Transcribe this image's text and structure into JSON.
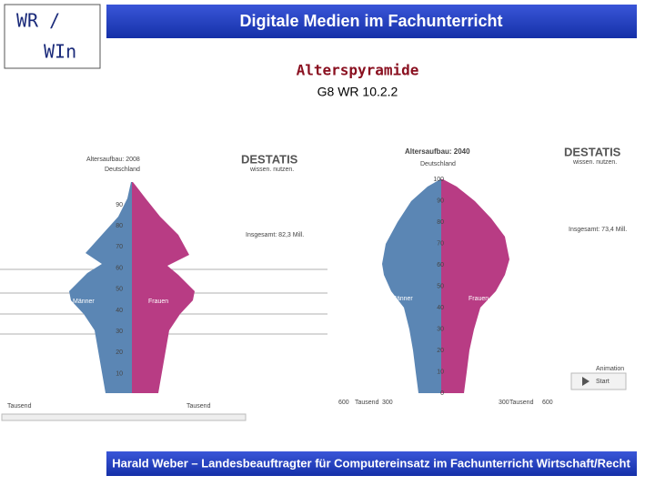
{
  "header": {
    "logo_line1": "WR /",
    "logo_line2": "WIn",
    "title": "Digitale Medien im Fachunterricht"
  },
  "subtitle": "Alterspyramide",
  "course": "G8 WR 10.2.2",
  "left_panel": {
    "title": "Altersaufbau: 2008",
    "region": "Deutschland",
    "brand": "DESTATIS",
    "brand_tagline": "wissen. nutzen.",
    "male": "Männer",
    "female": "Frauen",
    "total": "Insgesamt: 82,3 Mill.",
    "unit": "Tausend",
    "age_labels": [
      "90",
      "80",
      "70",
      "60",
      "50",
      "40",
      "30",
      "20",
      "10"
    ]
  },
  "right_panel": {
    "title": "Altersaufbau: 2040",
    "region": "Deutschland",
    "brand": "DESTATIS",
    "brand_tagline": "wissen. nutzen.",
    "male": "Männer",
    "female": "Frauen",
    "total": "Insgesamt: 73,4 Mill.",
    "unit": "Tausend",
    "animation": "Animation",
    "start": "Start",
    "age_labels": [
      "100",
      "90",
      "80",
      "70",
      "60",
      "50",
      "40",
      "30",
      "20",
      "10",
      "0"
    ],
    "x_labels": [
      "600",
      "300",
      "300",
      "600"
    ]
  },
  "footer": "Harald Weber – Landesbeauftragter für Computereinsatz im Fachunterricht Wirtschaft/Recht"
}
